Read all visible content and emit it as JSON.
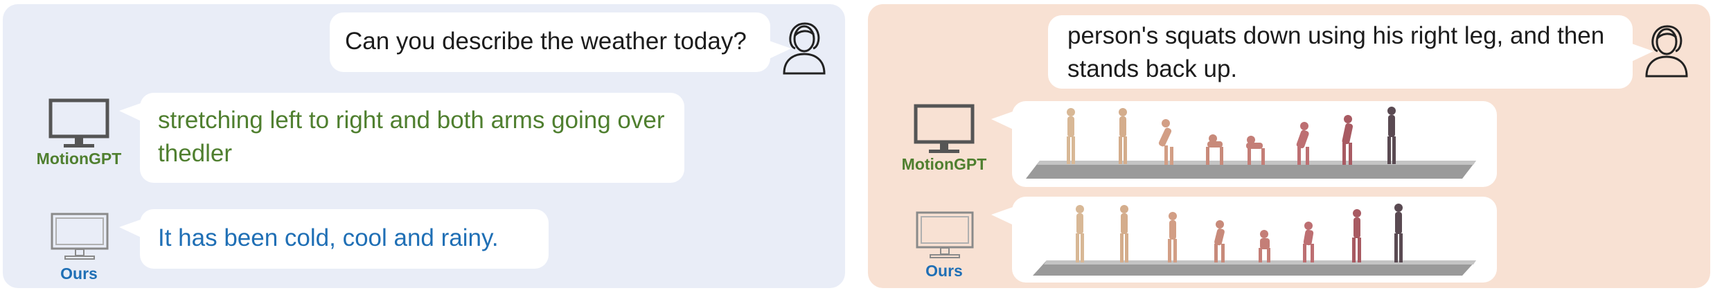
{
  "left_panel": {
    "user_question": "Can you describe the weather today?",
    "motiongpt_label": "MotionGPT",
    "motiongpt_reply": "stretching left to right and both arms going over thedler",
    "ours_label": "Ours",
    "ours_reply": "It has been cold, cool and rainy."
  },
  "right_panel": {
    "user_question": "person's squats down using his right leg, and then stands back up.",
    "motiongpt_label": "MotionGPT",
    "ours_label": "Ours"
  },
  "icons": {
    "user": "person-outline-icon",
    "motiongpt": "monitor-dark-icon",
    "ours": "monitor-light-icon"
  },
  "colors": {
    "left_panel_bg": "#e9edf7",
    "right_panel_bg": "#f8e1d3",
    "motiongpt_text": "#4f7f2f",
    "ours_text": "#1f6fb5"
  }
}
